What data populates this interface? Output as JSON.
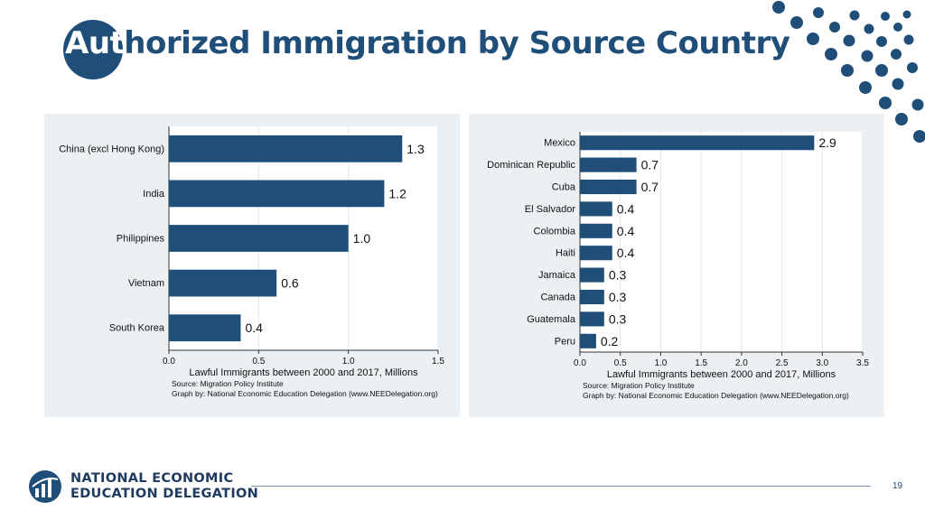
{
  "slide": {
    "title_lead": "Aut",
    "title_rest": "horized Immigration by Source Country",
    "page_number": "19",
    "logo_line1": "NATIONAL ECONOMIC",
    "logo_line2": "EDUCATION DELEGATION",
    "accent_color": "#1f4e79",
    "bar_color": "#1f4e79"
  },
  "chart_data": [
    {
      "type": "bar",
      "orientation": "horizontal",
      "categories": [
        "China (excl Hong Kong)",
        "India",
        "Philippines",
        "Vietnam",
        "South Korea"
      ],
      "values": [
        1.3,
        1.2,
        1.0,
        0.6,
        0.4
      ],
      "value_labels": [
        "1.3",
        "1.2",
        "1.0",
        "0.6",
        "0.4"
      ],
      "xlabel": "Lawful Immigrants between 2000 and 2017, Millions",
      "xlim": [
        0,
        1.5
      ],
      "xticks": [
        0,
        0.5,
        1.0,
        1.5
      ],
      "xtick_labels": [
        "0.0",
        "0.5",
        "1.0",
        "1.5"
      ],
      "source": "Source: Migration Policy Institute",
      "credit": "Graph by: National Economic Education Delegation (www.NEEDelegation.org)",
      "grid": true
    },
    {
      "type": "bar",
      "orientation": "horizontal",
      "categories": [
        "Mexico",
        "Dominican Republic",
        "Cuba",
        "El Salvador",
        "Colombia",
        "Haiti",
        "Jamaica",
        "Canada",
        "Guatemala",
        "Peru"
      ],
      "values": [
        2.9,
        0.7,
        0.7,
        0.4,
        0.4,
        0.4,
        0.3,
        0.3,
        0.3,
        0.2
      ],
      "value_labels": [
        "2.9",
        "0.7",
        "0.7",
        "0.4",
        "0.4",
        "0.4",
        "0.3",
        "0.3",
        "0.3",
        "0.2"
      ],
      "xlabel": "Lawful Immigrants between 2000 and 2017, Millions",
      "xlim": [
        0,
        3.5
      ],
      "xticks": [
        0,
        0.5,
        1.0,
        1.5,
        2.0,
        2.5,
        3.0,
        3.5
      ],
      "xtick_labels": [
        "0.0",
        "0.5",
        "1.0",
        "1.5",
        "2.0",
        "2.5",
        "3.0",
        "3.5"
      ],
      "source": "Source: Migration Policy Institute",
      "credit": "Graph by: National Economic Education Delegation (www.NEEDelegation.org)",
      "grid": true
    }
  ]
}
